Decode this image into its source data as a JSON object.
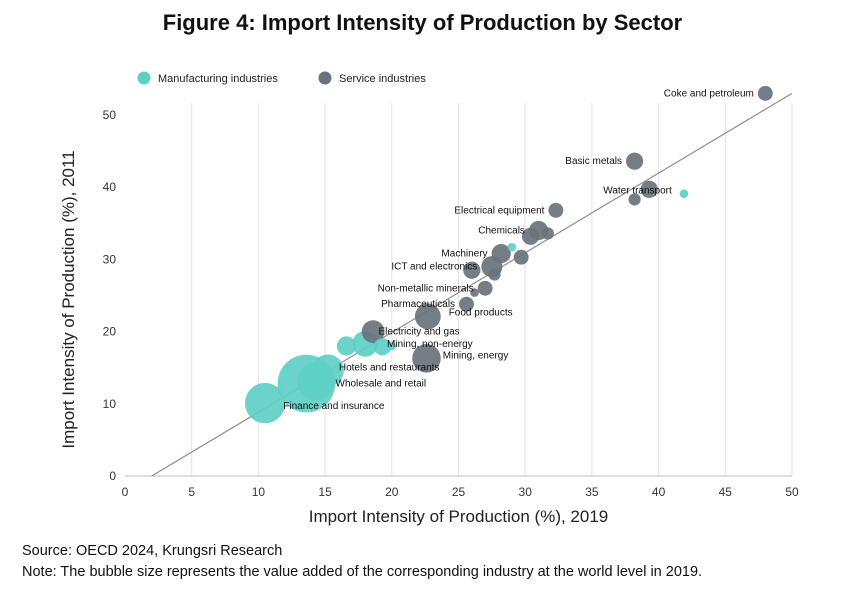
{
  "title": "Figure 4: Import Intensity of Production by Sector",
  "source": "Source: OECD 2024, Krungsri Research",
  "note": "Note: The bubble size represents the value added of the corresponding industry at the world level in 2019.",
  "colors": {
    "manufacturing": "#5ecfc4",
    "service": "#69737b",
    "diagonal": "#9a8a86",
    "grid": "#e3e3e3"
  },
  "chart_data": {
    "type": "scatter",
    "title": "Figure 4: Import Intensity of Production by Sector",
    "xlabel": "Import Intensity of Production (%), 2019",
    "ylabel": "Import Intensity of Production (%), 2011",
    "xlim": [
      0,
      50
    ],
    "ylim": [
      0,
      50
    ],
    "xticks": [
      0,
      5,
      10,
      15,
      20,
      25,
      30,
      35,
      40,
      45,
      50
    ],
    "yticks": [
      0,
      10,
      20,
      30,
      40,
      50
    ],
    "grid": "vertical",
    "legend": {
      "placement": "top-left",
      "entries": [
        {
          "key": "manufacturing",
          "label": "Manufacturing industries"
        },
        {
          "key": "service",
          "label": "Service industries"
        }
      ]
    },
    "trendline": {
      "type": "linear",
      "from": [
        2,
        0
      ],
      "to": [
        50,
        53
      ]
    },
    "points": [
      {
        "label": "Coke and petroleum",
        "x": 48.0,
        "y": 53.0,
        "size": 3,
        "group": "service"
      },
      {
        "label": "Basic metals",
        "x": 38.2,
        "y": 43.6,
        "size": 4,
        "group": "service"
      },
      {
        "label": "Water transport",
        "x": 39.3,
        "y": 39.7,
        "size": 4,
        "group": "service"
      },
      {
        "label": "",
        "x": 38.2,
        "y": 38.3,
        "size": 2,
        "group": "service"
      },
      {
        "label": "",
        "x": 41.9,
        "y": 39.1,
        "size": 1,
        "group": "manufacturing"
      },
      {
        "label": "Electrical equipment",
        "x": 32.3,
        "y": 36.8,
        "size": 3,
        "group": "service"
      },
      {
        "label": "Chemicals",
        "x": 31.0,
        "y": 34.0,
        "size": 5,
        "group": "service"
      },
      {
        "label": "",
        "x": 31.7,
        "y": 33.6,
        "size": 2,
        "group": "service"
      },
      {
        "label": "",
        "x": 30.4,
        "y": 33.2,
        "size": 4,
        "group": "service"
      },
      {
        "label": "Machinery",
        "x": 28.2,
        "y": 30.8,
        "size": 5,
        "group": "service"
      },
      {
        "label": "",
        "x": 29.0,
        "y": 31.7,
        "size": 1,
        "group": "manufacturing"
      },
      {
        "label": "",
        "x": 29.7,
        "y": 30.3,
        "size": 3,
        "group": "service"
      },
      {
        "label": "ICT and electronics",
        "x": 27.5,
        "y": 29.0,
        "size": 6,
        "group": "service"
      },
      {
        "label": "",
        "x": 26.0,
        "y": 28.5,
        "size": 4,
        "group": "service"
      },
      {
        "label": "",
        "x": 27.7,
        "y": 27.9,
        "size": 2,
        "group": "service"
      },
      {
        "label": "Non-metallic minerals",
        "x": 27.0,
        "y": 26.0,
        "size": 3,
        "group": "service"
      },
      {
        "label": "",
        "x": 26.2,
        "y": 25.4,
        "size": 1,
        "group": "service"
      },
      {
        "label": "Pharmaceuticals",
        "x": 25.6,
        "y": 23.8,
        "size": 3,
        "group": "service"
      },
      {
        "label": "Food products",
        "x": 22.7,
        "y": 22.1,
        "size": 9,
        "group": "service"
      },
      {
        "label": "Electricity and gas",
        "x": 18.6,
        "y": 20.0,
        "size": 7,
        "group": "service"
      },
      {
        "label": "Mining, non-energy",
        "x": 19.3,
        "y": 17.9,
        "size": 4,
        "group": "manufacturing"
      },
      {
        "label": "",
        "x": 20.0,
        "y": 18.0,
        "size": 1,
        "group": "manufacturing"
      },
      {
        "label": "",
        "x": 16.6,
        "y": 18.0,
        "size": 5,
        "group": "manufacturing"
      },
      {
        "label": "",
        "x": 18.0,
        "y": 18.3,
        "size": 9,
        "group": "manufacturing"
      },
      {
        "label": "Mining, energy",
        "x": 22.6,
        "y": 16.3,
        "size": 11,
        "group": "service"
      },
      {
        "label": "Hotels and restaurants",
        "x": 15.2,
        "y": 14.6,
        "size": 14,
        "group": "manufacturing"
      },
      {
        "label": "Wholesale and retail",
        "x": 14.3,
        "y": 13.1,
        "size": 19,
        "group": "manufacturing"
      },
      {
        "label": "",
        "x": 13.6,
        "y": 12.8,
        "size": 45,
        "group": "manufacturing"
      },
      {
        "label": "Finance and insurance",
        "x": 10.5,
        "y": 10.1,
        "size": 22,
        "group": "manufacturing"
      }
    ]
  }
}
